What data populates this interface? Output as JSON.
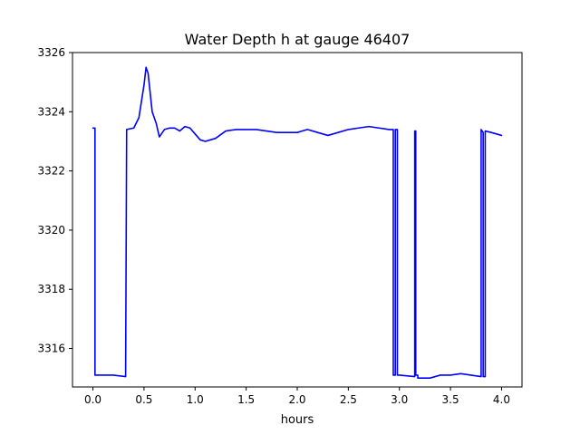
{
  "chart_data": {
    "type": "line",
    "title": "Water Depth h at gauge 46407",
    "xlabel": "hours",
    "ylabel": "",
    "xlim": [
      -0.2,
      4.2
    ],
    "ylim": [
      3314.7,
      3326
    ],
    "xticks": [
      0.0,
      0.5,
      1.0,
      1.5,
      2.0,
      2.5,
      3.0,
      3.5,
      4.0
    ],
    "xtick_labels": [
      "0.0",
      "0.5",
      "1.0",
      "1.5",
      "2.0",
      "2.5",
      "3.0",
      "3.5",
      "4.0"
    ],
    "yticks": [
      3316,
      3318,
      3320,
      3322,
      3324,
      3326
    ],
    "ytick_labels": [
      "3316",
      "3318",
      "3320",
      "3322",
      "3324",
      "3326"
    ],
    "grid": false,
    "series": [
      {
        "color": "#0000ff",
        "x": [
          0.0,
          0.02,
          0.02,
          0.2,
          0.32,
          0.33,
          0.33,
          0.4,
          0.45,
          0.5,
          0.52,
          0.54,
          0.58,
          0.62,
          0.65,
          0.7,
          0.75,
          0.8,
          0.85,
          0.9,
          0.95,
          1.0,
          1.05,
          1.1,
          1.15,
          1.2,
          1.3,
          1.4,
          1.5,
          1.6,
          1.7,
          1.8,
          1.9,
          2.0,
          2.05,
          2.1,
          2.2,
          2.3,
          2.4,
          2.5,
          2.6,
          2.7,
          2.8,
          2.9,
          2.94,
          2.94,
          2.96,
          2.96,
          2.98,
          2.98,
          3.0,
          3.15,
          3.15,
          3.16,
          3.16,
          3.18,
          3.18,
          3.3,
          3.4,
          3.5,
          3.6,
          3.7,
          3.8,
          3.8,
          3.82,
          3.82,
          3.84,
          3.84,
          3.9,
          4.0
        ],
        "y": [
          3323.45,
          3323.45,
          3315.1,
          3315.1,
          3315.05,
          3323.4,
          3323.4,
          3323.45,
          3323.8,
          3324.9,
          3325.5,
          3325.3,
          3324,
          3323.6,
          3323.15,
          3323.4,
          3323.45,
          3323.45,
          3323.35,
          3323.5,
          3323.45,
          3323.25,
          3323.05,
          3323.0,
          3323.05,
          3323.1,
          3323.35,
          3323.4,
          3323.4,
          3323.4,
          3323.35,
          3323.3,
          3323.3,
          3323.3,
          3323.35,
          3323.4,
          3323.3,
          3323.2,
          3323.3,
          3323.4,
          3323.45,
          3323.5,
          3323.45,
          3323.4,
          3323.4,
          3315.1,
          3315.1,
          3323.4,
          3323.4,
          3315.1,
          3315.1,
          3315.05,
          3323.35,
          3323.35,
          3315.1,
          3315.1,
          3315.0,
          3315.0,
          3315.1,
          3315.1,
          3315.15,
          3315.1,
          3315.05,
          3323.4,
          3323.3,
          3315.05,
          3315.05,
          3323.35,
          3323.3,
          3323.2
        ]
      }
    ]
  }
}
